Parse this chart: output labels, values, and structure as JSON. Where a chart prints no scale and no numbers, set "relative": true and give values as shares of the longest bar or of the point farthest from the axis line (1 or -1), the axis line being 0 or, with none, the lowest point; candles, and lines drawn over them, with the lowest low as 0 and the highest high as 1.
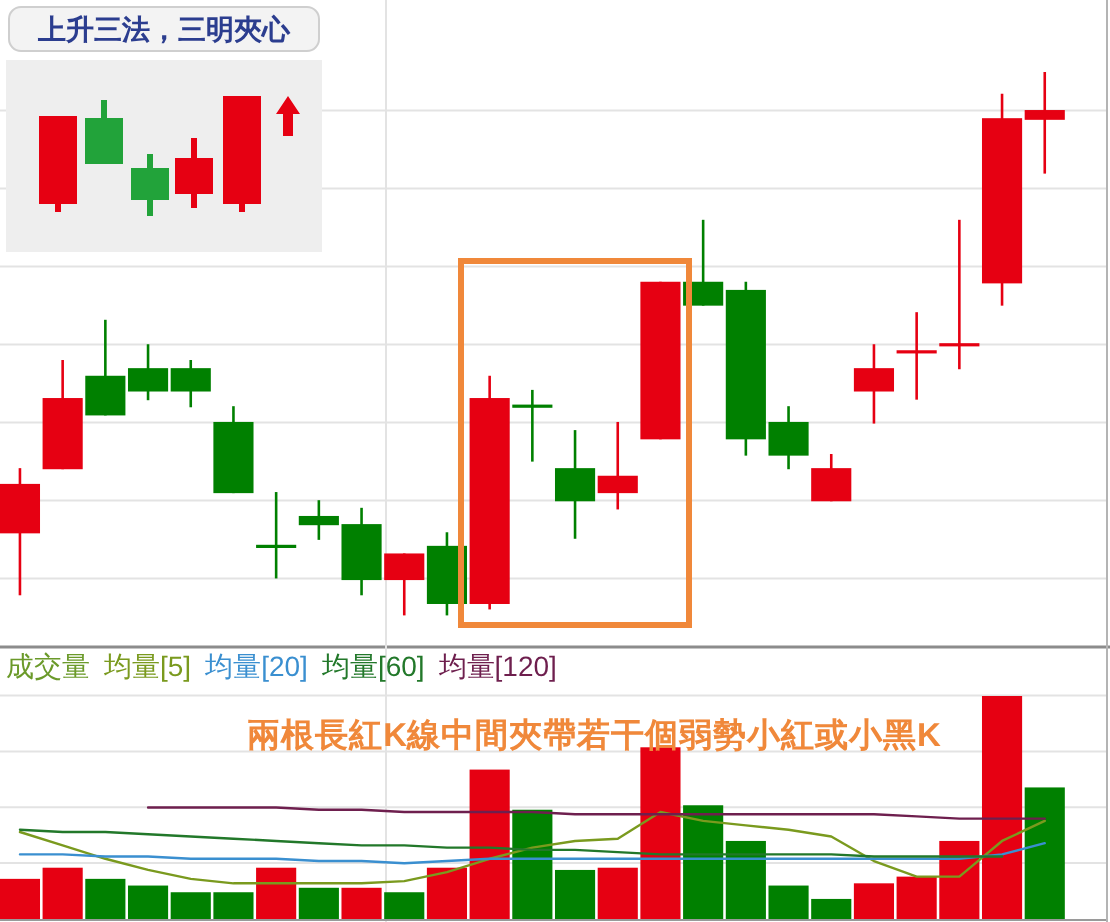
{
  "chart_data": [
    {
      "type": "candlestick",
      "title": "上升三法，三明夾心",
      "relative": true,
      "grid": true,
      "categories": [
        null,
        null,
        null,
        null,
        null,
        null,
        null,
        null,
        null,
        null,
        null,
        null,
        null,
        null,
        null,
        null,
        null,
        null,
        null,
        null,
        null,
        null,
        null,
        null,
        null
      ],
      "colors": [
        "#e60012",
        "#e60012",
        "#008000",
        "#008000",
        "#008000",
        "#008000",
        "#008000",
        "#008000",
        "#008000",
        "#e60012",
        "#008000",
        "#e60012",
        "#008000",
        "#008000",
        "#e60012",
        "#e60012",
        "#008000",
        "#008000",
        "#008000",
        "#e60012",
        "#e60012",
        "#e60012",
        "#e60012",
        "#e60012",
        "#e60012"
      ],
      "ohlc": [
        [
          0.151,
          0.271,
          0.037,
          0.242
        ],
        [
          0.269,
          0.47,
          0.269,
          0.4
        ],
        [
          0.441,
          0.544,
          0.368,
          0.368
        ],
        [
          0.455,
          0.499,
          0.396,
          0.412
        ],
        [
          0.455,
          0.47,
          0.383,
          0.412
        ],
        [
          0.356,
          0.385,
          0.225,
          0.225
        ],
        [
          0.127,
          0.227,
          0.068,
          0.127
        ],
        [
          0.183,
          0.212,
          0.139,
          0.166
        ],
        [
          0.168,
          0.198,
          0.037,
          0.065
        ],
        [
          0.065,
          0.114,
          0,
          0.114
        ],
        [
          0.128,
          0.153,
          0,
          0.021
        ],
        [
          0.021,
          0.441,
          0.011,
          0.4
        ],
        [
          0.385,
          0.415,
          0.283,
          0.385
        ],
        [
          0.271,
          0.341,
          0.141,
          0.21
        ],
        [
          0.225,
          0.356,
          0.195,
          0.257
        ],
        [
          0.324,
          0.614,
          0.324,
          0.614
        ],
        [
          0.614,
          0.728,
          0.57,
          0.57
        ],
        [
          0.599,
          0.614,
          0.294,
          0.324
        ],
        [
          0.356,
          0.385,
          0.269,
          0.294
        ],
        [
          0.21,
          0.297,
          0.21,
          0.271
        ],
        [
          0.412,
          0.499,
          0.353,
          0.455
        ],
        [
          0.485,
          0.558,
          0.397,
          0.485
        ],
        [
          0.498,
          0.728,
          0.453,
          0.498
        ],
        [
          0.611,
          0.96,
          0.57,
          0.915
        ],
        [
          0.912,
          1,
          0.813,
          0.93
        ]
      ]
    },
    {
      "type": "bar",
      "title": "成交量",
      "relative": true,
      "grid": true,
      "categories": [
        null,
        null,
        null,
        null,
        null,
        null,
        null,
        null,
        null,
        null,
        null,
        null,
        null,
        null,
        null,
        null,
        null,
        null,
        null,
        null,
        null,
        null,
        null,
        null,
        null
      ],
      "annotations": [
        "兩根長紅K線中間夾帶若干個弱勢小紅或小黑K"
      ],
      "series": [
        {
          "type": "bar",
          "colors": [
            "#e60012",
            "#e60012",
            "#008000",
            "#008000",
            "#008000",
            "#008000",
            "#e60012",
            "#008000",
            "#e60012",
            "#008000",
            "#e60012",
            "#e60012",
            "#008000",
            "#008000",
            "#e60012",
            "#e60012",
            "#008000",
            "#008000",
            "#008000",
            "#008000",
            "#e60012",
            "#e60012",
            "#e60012",
            "#e60012",
            "#008000"
          ],
          "values": [
            0.18,
            0.23,
            0.18,
            0.15,
            0.12,
            0.12,
            0.23,
            0.14,
            0.14,
            0.12,
            0.23,
            0.67,
            0.49,
            0.22,
            0.23,
            0.77,
            0.51,
            0.35,
            0.15,
            0.09,
            0.16,
            0.19,
            0.35,
            1,
            0.59
          ]
        },
        {
          "type": "line",
          "name": "均量[5]",
          "color": "#7a9a1e",
          "values": [
            0.39,
            0.33,
            0.27,
            0.22,
            0.18,
            0.16,
            0.16,
            0.16,
            0.16,
            0.17,
            0.21,
            0.27,
            0.32,
            0.35,
            0.36,
            0.48,
            0.44,
            0.42,
            0.4,
            0.37,
            0.26,
            0.19,
            0.19,
            0.35,
            0.44
          ]
        },
        {
          "type": "line",
          "name": "均量[20]",
          "color": "#3a8fd0",
          "values": [
            0.29,
            0.29,
            0.28,
            0.28,
            0.27,
            0.27,
            0.27,
            0.26,
            0.26,
            0.25,
            0.26,
            0.27,
            0.27,
            0.27,
            0.27,
            0.27,
            0.27,
            0.27,
            0.27,
            0.27,
            0.27,
            0.27,
            0.27,
            0.29,
            0.34
          ]
        },
        {
          "type": "line",
          "name": "均量[60]",
          "color": "#22782a",
          "values": [
            0.4,
            0.39,
            0.39,
            0.38,
            0.37,
            0.36,
            0.35,
            0.34,
            0.33,
            0.33,
            0.32,
            0.32,
            0.31,
            0.31,
            0.3,
            0.29,
            0.29,
            0.29,
            0.29,
            0.29,
            0.28,
            0.28,
            0.28,
            0.28,
            null
          ]
        },
        {
          "type": "line",
          "name": "均量[120]",
          "color": "#6e1f4e",
          "values": [
            null,
            null,
            null,
            0.5,
            0.5,
            0.5,
            0.5,
            0.49,
            0.49,
            0.48,
            0.48,
            0.48,
            0.48,
            0.47,
            0.47,
            0.47,
            0.47,
            0.47,
            0.47,
            0.47,
            0.47,
            0.46,
            0.45,
            0.45,
            0.45
          ]
        }
      ]
    }
  ]
}
